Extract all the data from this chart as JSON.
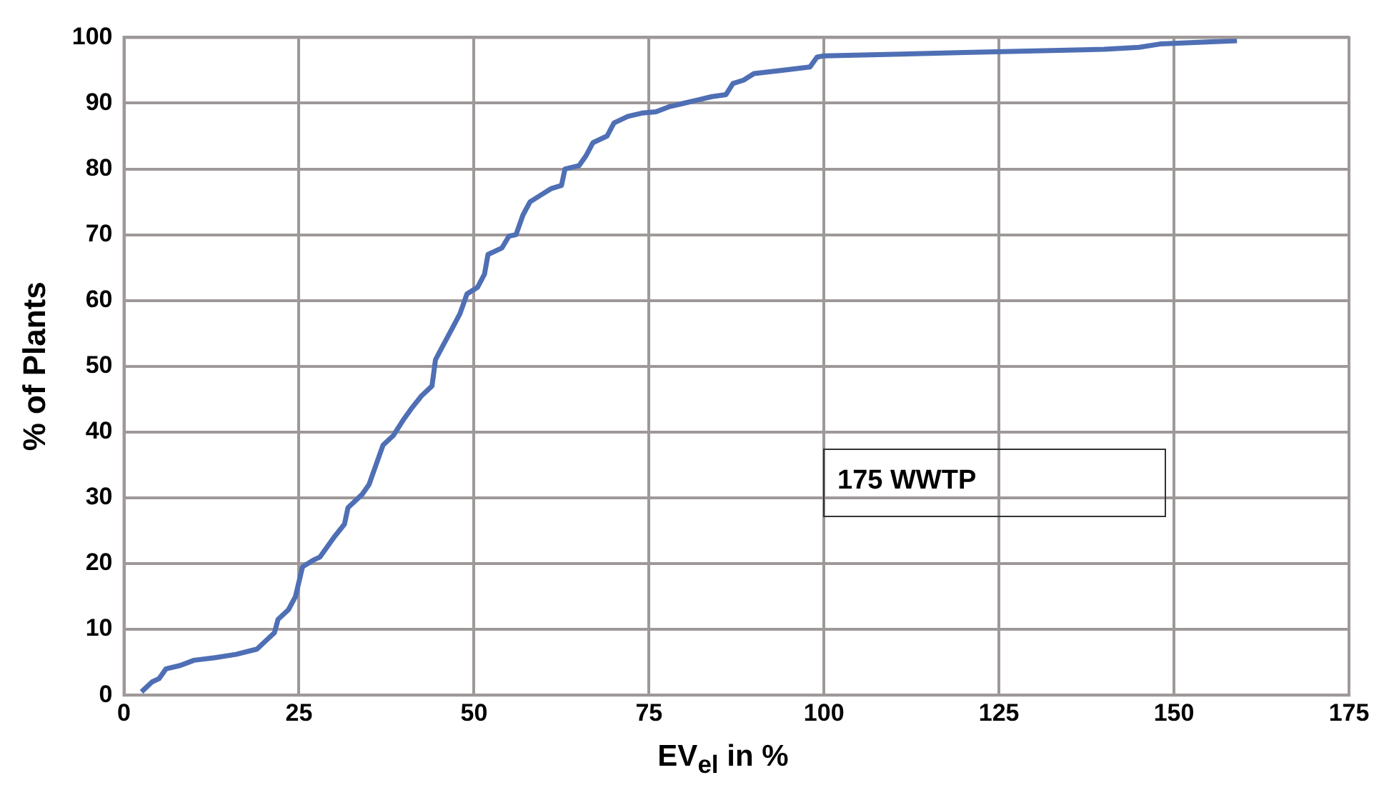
{
  "chart_data": {
    "type": "line",
    "xlabel": "EV$_{el}$ in %",
    "ylabel": "% of Plants",
    "annotations": [
      "175 WWTP"
    ],
    "xlim": [
      0,
      175
    ],
    "xticks": [
      0,
      25,
      50,
      75,
      100,
      125,
      150,
      175
    ],
    "ylim": [
      0,
      100
    ],
    "yticks": [
      0,
      10,
      20,
      30,
      40,
      50,
      60,
      70,
      80,
      90,
      100
    ],
    "grid": true,
    "legend": false,
    "marker": "none",
    "line_style": "solid",
    "series": [
      {
        "color": "#4f6fb5",
        "x": [
          2.5,
          4,
          5,
          6,
          8,
          10,
          13,
          16,
          19,
          20,
          21.5,
          22,
          23.5,
          24.5,
          25.5,
          27,
          28,
          29,
          30,
          31.5,
          32,
          34,
          35,
          36,
          37,
          38.5,
          40,
          41,
          42.5,
          44,
          44.5,
          45.5,
          47,
          48,
          49,
          50.5,
          51.5,
          52,
          54,
          55,
          56,
          57,
          58,
          59.5,
          61,
          62.5,
          63,
          65,
          66,
          67,
          69,
          70,
          72,
          74,
          76,
          78,
          80,
          82,
          84,
          86,
          87,
          88.5,
          90,
          94,
          98,
          99,
          100,
          120,
          140,
          145,
          148,
          159
        ],
        "values": [
          0.5,
          2,
          2.5,
          4,
          4.5,
          5.3,
          5.7,
          6.2,
          7,
          8,
          9.5,
          11.5,
          13,
          15,
          19.5,
          20.5,
          21,
          22.5,
          24,
          26,
          28.5,
          30.5,
          32,
          35,
          38,
          39.5,
          42,
          43.5,
          45.5,
          47,
          51,
          53,
          56,
          58,
          61,
          62,
          64,
          67,
          68,
          69.8,
          70,
          73,
          75,
          76,
          77,
          77.5,
          80,
          80.5,
          82,
          84,
          85,
          87,
          88,
          88.5,
          88.7,
          89.5,
          90,
          90.5,
          91,
          91.3,
          93,
          93.5,
          94.5,
          95,
          95.5,
          97,
          97.2,
          97.7,
          98.2,
          98.5,
          99,
          99.5
        ]
      }
    ]
  }
}
